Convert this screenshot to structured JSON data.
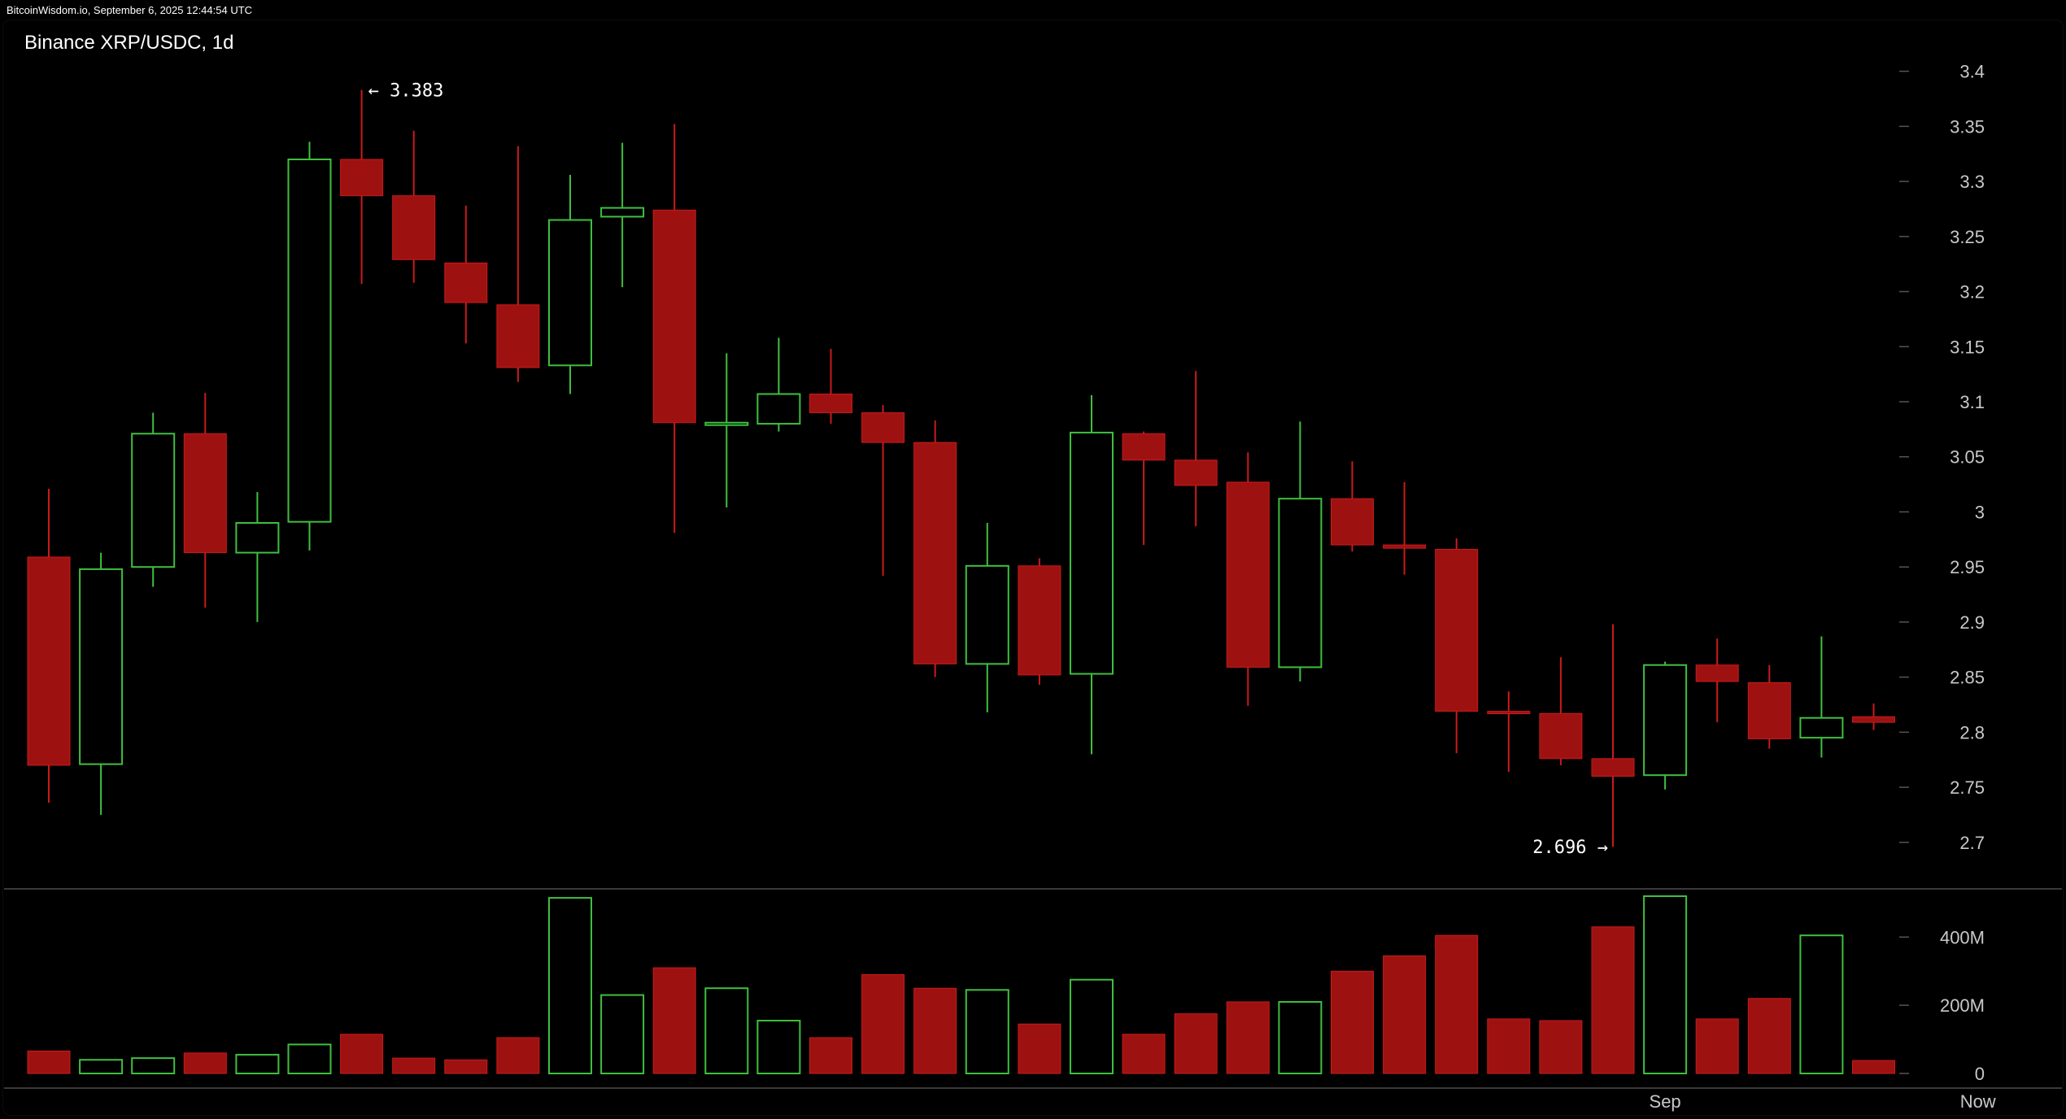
{
  "header": {
    "source_line": "BitcoinWisdom.io, September 6, 2025 12:44:54 UTC"
  },
  "colors": {
    "background": "#000000",
    "bull": "#3fbf3f",
    "bear": "#9e1111",
    "bear_wick": "#c91b1b",
    "text": "#ffffff",
    "axis_text": "#c8c8c8",
    "separator": "#3a3a3a"
  },
  "chart_data": {
    "type": "candlestick",
    "title": "Binance XRP/USDC, 1d",
    "price_axis": {
      "range": [
        2.66,
        3.43
      ],
      "ticks": [
        {
          "value": 3.4,
          "label": "3.4"
        },
        {
          "value": 3.35,
          "label": "3.35"
        },
        {
          "value": 3.3,
          "label": "3.3"
        },
        {
          "value": 3.25,
          "label": "3.25"
        },
        {
          "value": 3.2,
          "label": "3.2"
        },
        {
          "value": 3.15,
          "label": "3.15"
        },
        {
          "value": 3.1,
          "label": "3.1"
        },
        {
          "value": 3.05,
          "label": "3.05"
        },
        {
          "value": 3.0,
          "label": "3"
        },
        {
          "value": 2.95,
          "label": "2.95"
        },
        {
          "value": 2.9,
          "label": "2.9"
        },
        {
          "value": 2.85,
          "label": "2.85"
        },
        {
          "value": 2.8,
          "label": "2.8"
        },
        {
          "value": 2.75,
          "label": "2.75"
        },
        {
          "value": 2.7,
          "label": "2.7"
        }
      ]
    },
    "volume_axis": {
      "range": [
        0,
        520
      ],
      "unit": "M",
      "ticks": [
        {
          "value": 400,
          "label": "400M"
        },
        {
          "value": 200,
          "label": "200M"
        },
        {
          "value": 0,
          "label": "0"
        }
      ]
    },
    "time_axis": {
      "labels": [
        {
          "index": 31,
          "label": "Sep"
        },
        {
          "index": 37,
          "label": "Now"
        }
      ]
    },
    "candles": [
      {
        "o": 2.959,
        "h": 3.021,
        "l": 2.736,
        "c": 2.77,
        "v": 66
      },
      {
        "o": 2.771,
        "h": 2.963,
        "l": 2.725,
        "c": 2.948,
        "v": 40
      },
      {
        "o": 2.95,
        "h": 3.09,
        "l": 2.932,
        "c": 3.071,
        "v": 45
      },
      {
        "o": 3.071,
        "h": 3.108,
        "l": 2.913,
        "c": 2.963,
        "v": 60
      },
      {
        "o": 2.963,
        "h": 3.018,
        "l": 2.9,
        "c": 2.99,
        "v": 55
      },
      {
        "o": 2.991,
        "h": 3.336,
        "l": 2.965,
        "c": 3.32,
        "v": 85
      },
      {
        "o": 3.32,
        "h": 3.383,
        "l": 3.207,
        "c": 3.287,
        "v": 115
      },
      {
        "o": 3.287,
        "h": 3.346,
        "l": 3.208,
        "c": 3.229,
        "v": 45
      },
      {
        "o": 3.226,
        "h": 3.278,
        "l": 3.153,
        "c": 3.19,
        "v": 40
      },
      {
        "o": 3.188,
        "h": 3.332,
        "l": 3.118,
        "c": 3.131,
        "v": 105
      },
      {
        "o": 3.133,
        "h": 3.306,
        "l": 3.107,
        "c": 3.265,
        "v": 515
      },
      {
        "o": 3.268,
        "h": 3.335,
        "l": 3.204,
        "c": 3.276,
        "v": 230
      },
      {
        "o": 3.274,
        "h": 3.352,
        "l": 2.981,
        "c": 3.081,
        "v": 310
      },
      {
        "o": 3.081,
        "h": 3.144,
        "l": 3.004,
        "c": 3.081,
        "v": 250
      },
      {
        "o": 3.08,
        "h": 3.158,
        "l": 3.073,
        "c": 3.107,
        "v": 155
      },
      {
        "o": 3.107,
        "h": 3.148,
        "l": 3.08,
        "c": 3.09,
        "v": 105
      },
      {
        "o": 3.09,
        "h": 3.097,
        "l": 2.942,
        "c": 3.063,
        "v": 290
      },
      {
        "o": 3.063,
        "h": 3.083,
        "l": 2.85,
        "c": 2.862,
        "v": 250
      },
      {
        "o": 2.862,
        "h": 2.99,
        "l": 2.818,
        "c": 2.951,
        "v": 245
      },
      {
        "o": 2.951,
        "h": 2.958,
        "l": 2.843,
        "c": 2.852,
        "v": 145
      },
      {
        "o": 2.853,
        "h": 3.106,
        "l": 2.78,
        "c": 3.072,
        "v": 275
      },
      {
        "o": 3.071,
        "h": 3.073,
        "l": 2.97,
        "c": 3.047,
        "v": 115
      },
      {
        "o": 3.047,
        "h": 3.128,
        "l": 2.987,
        "c": 3.024,
        "v": 175
      },
      {
        "o": 3.027,
        "h": 3.054,
        "l": 2.824,
        "c": 2.859,
        "v": 210
      },
      {
        "o": 2.859,
        "h": 3.082,
        "l": 2.846,
        "c": 3.012,
        "v": 210
      },
      {
        "o": 3.012,
        "h": 3.046,
        "l": 2.964,
        "c": 2.97,
        "v": 300
      },
      {
        "o": 2.97,
        "h": 3.027,
        "l": 2.943,
        "c": 2.967,
        "v": 345
      },
      {
        "o": 2.966,
        "h": 2.976,
        "l": 2.781,
        "c": 2.819,
        "v": 405
      },
      {
        "o": 2.819,
        "h": 2.837,
        "l": 2.764,
        "c": 2.818,
        "v": 160
      },
      {
        "o": 2.817,
        "h": 2.868,
        "l": 2.77,
        "c": 2.776,
        "v": 155
      },
      {
        "o": 2.776,
        "h": 2.898,
        "l": 2.696,
        "c": 2.76,
        "v": 430
      },
      {
        "o": 2.761,
        "h": 2.864,
        "l": 2.748,
        "c": 2.861,
        "v": 520
      },
      {
        "o": 2.861,
        "h": 2.885,
        "l": 2.809,
        "c": 2.846,
        "v": 160
      },
      {
        "o": 2.845,
        "h": 2.861,
        "l": 2.785,
        "c": 2.794,
        "v": 220
      },
      {
        "o": 2.795,
        "h": 2.887,
        "l": 2.777,
        "c": 2.813,
        "v": 405
      },
      {
        "o": 2.814,
        "h": 2.826,
        "l": 2.802,
        "c": 2.809,
        "v": 38
      }
    ],
    "annotations": [
      {
        "text": "← 3.383",
        "candle_index": 6,
        "value": 3.383
      },
      {
        "text": "2.696 →",
        "candle_index": 30,
        "value": 2.696
      }
    ]
  }
}
